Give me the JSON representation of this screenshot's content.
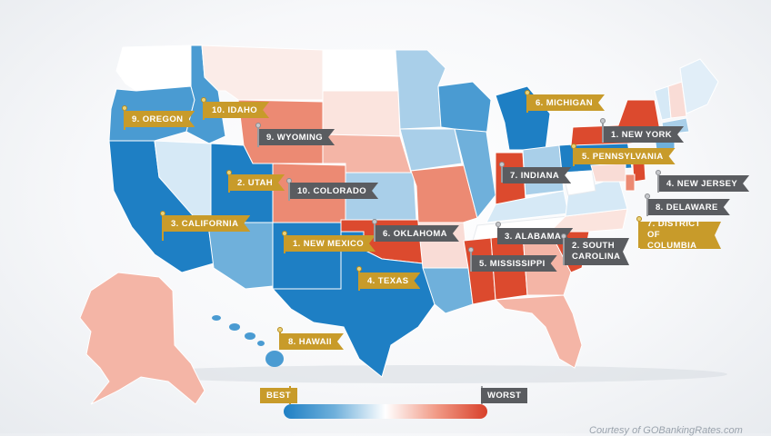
{
  "colors": {
    "best_dark": "#1e7fc4",
    "best_mid": "#4a9bd2",
    "best_light": "#a9cfe9",
    "best_pale": "#d6e9f6",
    "neutral": "#ffffff",
    "worst_pale": "#f9dcd6",
    "worst_light": "#f4b5a6",
    "worst_mid": "#ec8a73",
    "worst_dark": "#dc4a2e",
    "label_best": "#c89b2a",
    "label_worst": "#5a5c60"
  },
  "labels": {
    "ny": "1. NEW YORK",
    "nm": "1. NEW MEXICO",
    "sc": "2. SOUTH CAROLINA",
    "ut": "2. UTAH",
    "al": "3. ALABAMA",
    "ca": "3. CALIFORNIA",
    "nj": "4. NEW JERSEY",
    "tx": "4. TEXAS",
    "ms": "5. MISSISSIPPI",
    "pa": "5. PENNSYLVANIA",
    "ok": "6. OKLAHOMA",
    "mi": "6. MICHIGAN",
    "in": "7. INDIANA",
    "dc": "7. DISTRICT OF COLUMBIA",
    "de": "8. DELAWARE",
    "hi": "8. HAWAII",
    "wy": "9. WYOMING",
    "or": "9. OREGON",
    "co": "10. COLORADO",
    "id": "10. IDAHO"
  },
  "legend": {
    "best": "BEST",
    "worst": "WORST"
  },
  "credit": "Courtesy of GOBankingRates.com"
}
